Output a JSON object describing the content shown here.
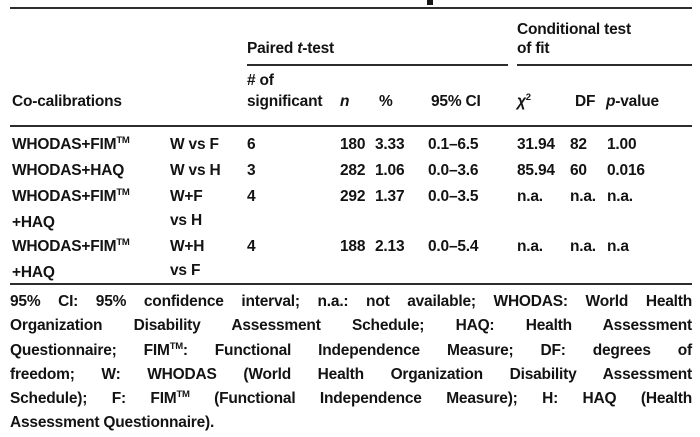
{
  "colors": {
    "background": "#ffffff",
    "ink": "#131313",
    "rule": "#2d2d2d"
  },
  "table": {
    "span_headers": {
      "paired": {
        "pre": "Paired ",
        "italic": "t",
        "post": "-test"
      },
      "conditional": {
        "line1": "Conditional test",
        "line2": "of fit"
      }
    },
    "col_headers": {
      "co_calibrations": "Co-calibrations",
      "significant_line1": "# of",
      "significant_line2": "significant",
      "n": "n",
      "pct": "%",
      "ci": "95% CI",
      "chi_base": "χ",
      "chi_sup": "2",
      "df": "DF",
      "p_italic": "p",
      "p_post": "-value"
    },
    "rows": [
      {
        "name": "WHODAS+FIM",
        "name_sup": "TM",
        "name2": "",
        "comp1": "W vs F",
        "comp2": "",
        "sig": "6",
        "n": "180",
        "pct": "3.33",
        "ci": "0.1–6.5",
        "chi2": "31.94",
        "df": "82",
        "p": "1.00"
      },
      {
        "name": "WHODAS+HAQ",
        "name_sup": "",
        "name2": "",
        "comp1": "W vs H",
        "comp2": "",
        "sig": "3",
        "n": "282",
        "pct": "1.06",
        "ci": "0.0–3.6",
        "chi2": "85.94",
        "df": "60",
        "p": "0.016"
      },
      {
        "name": "WHODAS+FIM",
        "name_sup": "TM",
        "name2": "+HAQ",
        "comp1": "W+F",
        "comp2": "vs H",
        "sig": "4",
        "n": "292",
        "pct": "1.37",
        "ci": "0.0–3.5",
        "chi2": "n.a.",
        "df": "n.a.",
        "p": "n.a."
      },
      {
        "name": "WHODAS+FIM",
        "name_sup": "TM",
        "name2": "+HAQ",
        "comp1": "W+H",
        "comp2": "vs F",
        "sig": "4",
        "n": "188",
        "pct": "2.13",
        "ci": "0.0–5.4",
        "chi2": "n.a.",
        "df": "n.a.",
        "p": "n.a"
      }
    ],
    "footnote": [
      {
        "pre": "95% CI: 95% confidence interval; n.a.: not available; WHODAS: World Health",
        "sup": "",
        "post": ""
      },
      {
        "pre": "Organization Disability Assessment Schedule; HAQ: Health Assessment",
        "sup": "",
        "post": ""
      },
      {
        "pre": "Questionnaire; FIM",
        "sup": "TM",
        "post": ": Functional Independence Measure; DF: degrees of"
      },
      {
        "pre": "freedom; W: WHODAS (World Health Organization Disability Assessment",
        "sup": "",
        "post": ""
      },
      {
        "pre": "Schedule); F: FIM",
        "sup": "TM",
        "post": " (Functional Independence Measure); H: HAQ (Health",
        "post2": ""
      },
      {
        "pre": "Assessment Questionnaire).",
        "sup": "",
        "post": ""
      }
    ]
  }
}
